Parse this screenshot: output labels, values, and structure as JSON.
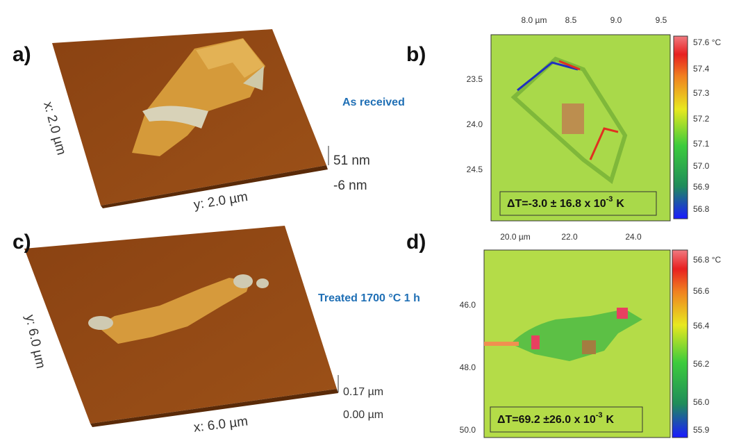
{
  "panels": [
    {
      "label": "a)",
      "x_axis": "x: 2.0 µm",
      "y_axis": "y: 2.0 µm",
      "z_scale": [
        "51 nm",
        "-6 nm"
      ],
      "caption": "As received"
    },
    {
      "label": "b)",
      "top_ticks": [
        "8.0 µm",
        "8.5",
        "9.0",
        "9.5"
      ],
      "left_ticks": [
        "23.5",
        "24.0",
        "24.5"
      ],
      "colorbar_ticks": [
        "57.6 °C",
        "57.4",
        "57.3",
        "57.2",
        "57.1",
        "57.0",
        "56.9",
        "56.8"
      ],
      "annotation": {
        "text": "ΔT=-3.0 ± 16.8 x 10",
        "superscript": "-3",
        "unit": "K"
      }
    },
    {
      "label": "c)",
      "x_axis": "y: 6.0 µm",
      "y_axis": "x: 6.0 µm",
      "z_scale": [
        "0.17 µm",
        "0.00 µm"
      ],
      "caption": "Treated 1700 °C 1 h"
    },
    {
      "label": "d)",
      "top_ticks": [
        "20.0 µm",
        "22.0",
        "24.0"
      ],
      "left_ticks": [
        "46.0",
        "48.0",
        "50.0"
      ],
      "colorbar_ticks": [
        "56.8 °C",
        "56.6",
        "56.4",
        "56.2",
        "56.0",
        "55.9"
      ],
      "annotation": {
        "text": "ΔT=69.2 ±26.0 x 10",
        "superscript": "-3",
        "unit": "K"
      }
    }
  ]
}
